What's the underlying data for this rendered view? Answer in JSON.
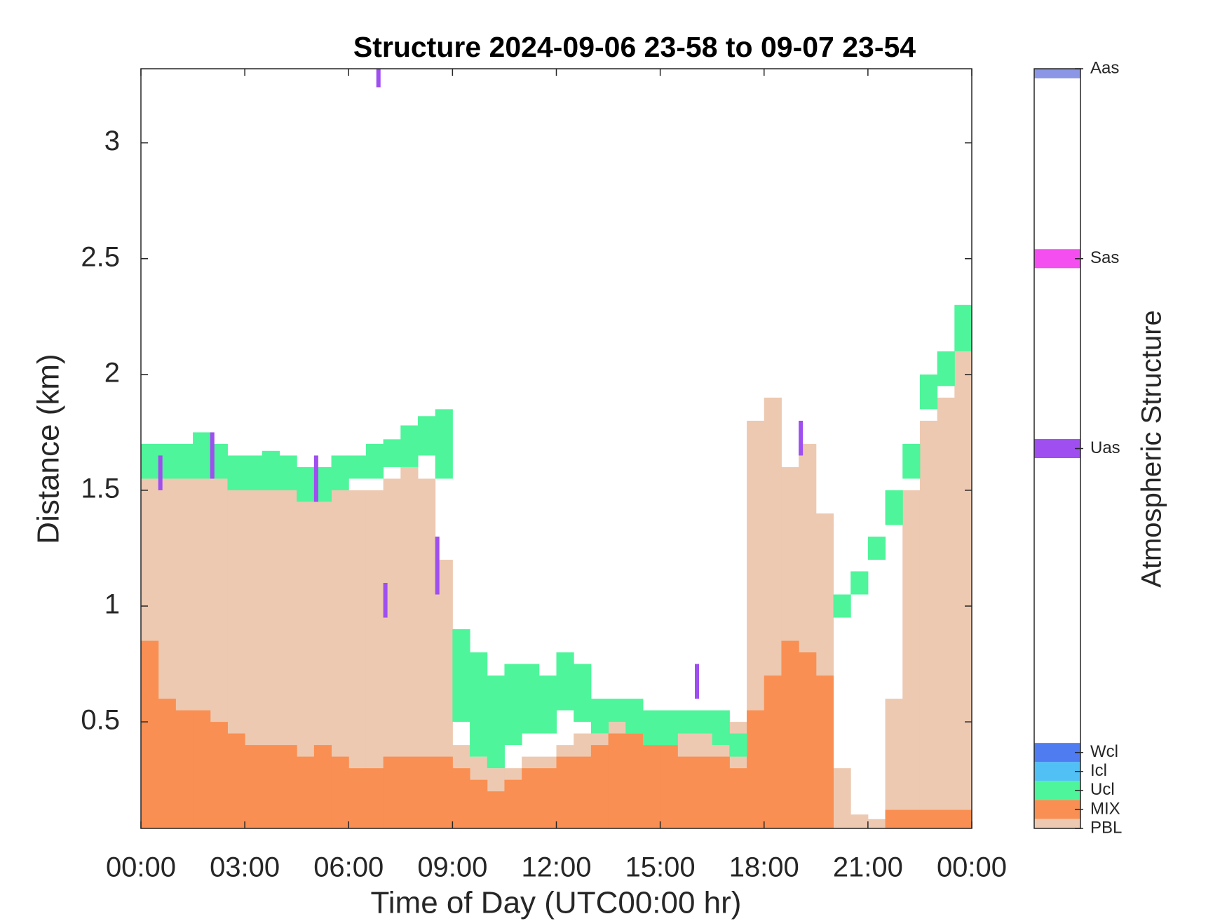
{
  "chart_data": {
    "type": "layers",
    "title": "Structure 2024-09-06 23-58 to 09-07 23-54",
    "xlabel": "Time of Day (UTC00:00 hr)",
    "ylabel": "Distance (km)",
    "xlim": [
      0,
      24
    ],
    "ylim": [
      0.04,
      3.32
    ],
    "xticks": [
      {
        "value": 0,
        "label": "00:00"
      },
      {
        "value": 3,
        "label": "03:00"
      },
      {
        "value": 6,
        "label": "06:00"
      },
      {
        "value": 9,
        "label": "09:00"
      },
      {
        "value": 12,
        "label": "12:00"
      },
      {
        "value": 15,
        "label": "15:00"
      },
      {
        "value": 18,
        "label": "18:00"
      },
      {
        "value": 21,
        "label": "21:00"
      },
      {
        "value": 24,
        "label": "00:00"
      }
    ],
    "yticks": [
      0.5,
      1,
      1.5,
      2,
      2.5,
      3
    ],
    "x": [
      0,
      0.5,
      1,
      1.5,
      2,
      2.5,
      3,
      3.5,
      4,
      4.5,
      5,
      5.5,
      6,
      6.5,
      7,
      7.5,
      8,
      8.5,
      9,
      9.5,
      10,
      10.5,
      11,
      11.5,
      12,
      12.5,
      13,
      13.5,
      14,
      14.5,
      15,
      15.5,
      16,
      16.5,
      17,
      17.5,
      18,
      18.5,
      19,
      19.5,
      20,
      20.5,
      21,
      21.5,
      22,
      22.5,
      23,
      23.5
    ],
    "series": [
      {
        "code": 0,
        "values": [
          1.6,
          1.55,
          1.55,
          1.55,
          1.55,
          1.5,
          1.5,
          1.5,
          1.5,
          1.45,
          1.45,
          1.5,
          1.5,
          1.5,
          1.55,
          1.6,
          1.55,
          1.2,
          0.4,
          0.35,
          0.3,
          0.3,
          0.35,
          0.35,
          0.4,
          0.45,
          0.45,
          0.5,
          0.5,
          0.45,
          0.45,
          0.5,
          0.5,
          0.5,
          0.5,
          1.8,
          1.9,
          1.6,
          1.7,
          1.4,
          0.3,
          0.1,
          0.08,
          0.6,
          1.5,
          1.8,
          1.9,
          2.1
        ]
      },
      {
        "code": 1,
        "values": [
          0.85,
          0.6,
          0.55,
          0.55,
          0.5,
          0.45,
          0.4,
          0.4,
          0.4,
          0.35,
          0.4,
          0.35,
          0.3,
          0.3,
          0.35,
          0.35,
          0.35,
          0.35,
          0.3,
          0.25,
          0.2,
          0.25,
          0.3,
          0.3,
          0.35,
          0.35,
          0.4,
          0.45,
          0.45,
          0.4,
          0.4,
          0.35,
          0.35,
          0.35,
          0.3,
          0.55,
          0.7,
          0.85,
          0.8,
          0.7,
          null,
          null,
          null,
          0.12,
          0.12,
          0.12,
          0.12,
          0.12
        ]
      },
      {
        "code": 2,
        "bases": [
          1.55,
          1.55,
          1.55,
          1.55,
          1.55,
          1.5,
          1.5,
          1.5,
          1.5,
          1.45,
          1.45,
          1.5,
          1.55,
          1.55,
          1.6,
          1.6,
          1.65,
          1.55,
          0.5,
          0.35,
          0.3,
          0.4,
          0.45,
          0.45,
          0.55,
          0.5,
          0.45,
          0.5,
          0.45,
          0.4,
          0.4,
          0.45,
          0.45,
          0.4,
          0.35,
          null,
          null,
          null,
          null,
          null,
          0.95,
          1.05,
          1.2,
          1.35,
          1.55,
          1.85,
          1.95,
          2.1
        ],
        "values": [
          1.7,
          1.7,
          1.7,
          1.75,
          1.7,
          1.65,
          1.65,
          1.67,
          1.65,
          1.6,
          1.6,
          1.65,
          1.65,
          1.7,
          1.72,
          1.78,
          1.82,
          1.85,
          0.9,
          0.8,
          0.7,
          0.75,
          0.75,
          0.7,
          0.8,
          0.75,
          0.6,
          0.6,
          0.6,
          0.55,
          0.55,
          0.55,
          0.55,
          0.55,
          0.45,
          null,
          null,
          null,
          null,
          null,
          1.05,
          1.15,
          1.3,
          1.5,
          1.7,
          2.0,
          2.1,
          2.3
        ]
      }
    ],
    "specks": {
      "code": 20,
      "x": [
        0.5,
        2.0,
        5.0,
        6.8,
        7.0,
        8.5,
        16.0,
        19.0
      ],
      "bases": [
        1.5,
        1.55,
        1.45,
        3.24,
        0.95,
        1.05,
        0.6,
        1.65
      ],
      "values": [
        1.65,
        1.75,
        1.65,
        3.32,
        1.1,
        1.3,
        0.75,
        1.8
      ]
    },
    "colorbar": {
      "label": "Atmospheric Structure",
      "lim": [
        0,
        40
      ],
      "ticks": [
        {
          "value": 0,
          "label": "PBL"
        },
        {
          "value": 1,
          "label": "MIX"
        },
        {
          "value": 2,
          "label": "Ucl"
        },
        {
          "value": 3,
          "label": "Icl"
        },
        {
          "value": 4,
          "label": "Wcl"
        },
        {
          "value": 20,
          "label": "Uas"
        },
        {
          "value": 30,
          "label": "Sas"
        },
        {
          "value": 40,
          "label": "Aas"
        }
      ],
      "colors": [
        "#edc9b1",
        "#f98f52",
        "#4ef59a",
        "#50c0f5",
        "#4f7cf0",
        "#9f4ef0",
        "#f54ef0",
        "#8c96e6"
      ]
    }
  }
}
